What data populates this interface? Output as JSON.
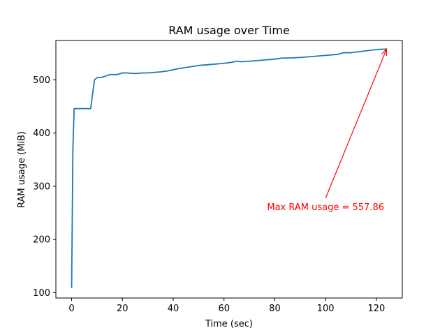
{
  "chart_data": {
    "type": "line",
    "title": "RAM usage over Time",
    "xlabel": "Time (sec)",
    "ylabel": "RAM usage (MiB)",
    "xlim": [
      -6.2,
      130.2
    ],
    "ylim": [
      90,
      574
    ],
    "xticks": [
      0,
      20,
      40,
      60,
      80,
      100,
      120
    ],
    "yticks": [
      100,
      200,
      300,
      400,
      500
    ],
    "grid": false,
    "line_color": "#1f77b4",
    "series": [
      {
        "x": [
          0,
          0.5,
          1,
          2,
          4,
          6,
          7.5,
          9,
          10,
          12,
          14,
          15,
          18,
          20,
          22,
          24,
          26,
          28,
          30,
          35,
          38,
          42,
          46,
          50,
          55,
          60,
          63,
          65,
          67,
          70,
          75,
          80,
          83,
          85,
          90,
          95,
          100,
          105,
          107,
          110,
          115,
          120,
          124
        ],
        "y": [
          109,
          370,
          446,
          446,
          446,
          446,
          446,
          500,
          504,
          505,
          508,
          510,
          510,
          513,
          513,
          512,
          512,
          513,
          513,
          515,
          517,
          521,
          524,
          527,
          529,
          531,
          533,
          535,
          534,
          535,
          537,
          539,
          541,
          541,
          542,
          544,
          546,
          548,
          551,
          551,
          554,
          557,
          557.86
        ]
      }
    ],
    "annotation": {
      "text": "Max RAM usage = 557.86",
      "color": "#ff0000",
      "point": [
        124,
        557.86
      ],
      "text_anchor": [
        100,
        262
      ]
    }
  }
}
